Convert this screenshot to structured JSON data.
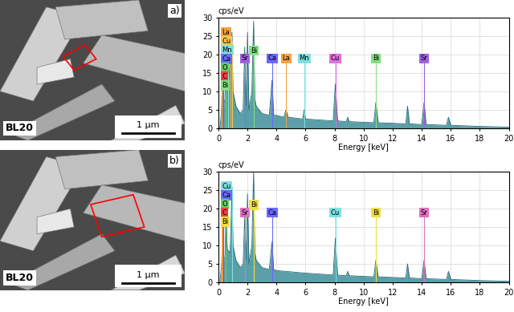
{
  "images": [
    {
      "label": "a)",
      "sample": "BL20",
      "scale_bar": "1 µm"
    },
    {
      "label": "b)",
      "sample": "BL20",
      "scale_bar": "1 µm"
    }
  ],
  "chart_data": [
    {
      "type": "area",
      "y_label": "cps/eV",
      "x_label": "Energy [keV]",
      "xlim": [
        0,
        20
      ],
      "ylim": [
        0,
        30
      ],
      "xticks": [
        0,
        2,
        4,
        6,
        8,
        10,
        12,
        14,
        16,
        18,
        20
      ],
      "yticks": [
        0,
        5,
        10,
        15,
        20,
        25,
        30
      ],
      "grid": true,
      "color": "#3e8e9a",
      "x": [
        0,
        0.1,
        0.2,
        0.28,
        0.35,
        0.45,
        0.52,
        0.6,
        0.7,
        0.83,
        0.93,
        1.0,
        1.2,
        1.5,
        1.7,
        1.81,
        1.9,
        2.0,
        2.1,
        2.3,
        2.42,
        2.5,
        2.6,
        3.0,
        3.5,
        3.69,
        3.8,
        4.0,
        4.5,
        4.65,
        4.8,
        5.8,
        5.9,
        6.0,
        7.9,
        8.05,
        8.2,
        8.8,
        8.9,
        9.0,
        10.7,
        10.84,
        11.0,
        12.9,
        13.02,
        13.15,
        14.0,
        14.16,
        14.3,
        15.7,
        15.84,
        16.0,
        18,
        20
      ],
      "values": [
        0,
        0,
        4,
        14,
        6,
        8,
        24,
        10,
        12,
        20,
        26,
        10,
        6,
        4,
        5,
        22,
        6,
        26,
        5,
        10,
        29,
        8,
        6,
        4,
        3.5,
        13,
        3.5,
        3.5,
        3,
        5,
        3,
        2.5,
        5,
        2.5,
        2,
        12,
        2,
        1.8,
        3,
        1.8,
        1.5,
        7,
        1.5,
        1.2,
        6,
        1.2,
        1.0,
        7,
        1.0,
        0.8,
        3,
        0.8,
        0.5,
        0.3
      ],
      "peak_labels": [
        {
          "label": "La",
          "energy": 0.83,
          "color": "#f4a340"
        },
        {
          "label": "Cu",
          "energy": 0.93,
          "color": "#f7c84a"
        },
        {
          "label": "Mn",
          "energy": 0.64,
          "color": "#7fe0e0"
        },
        {
          "label": "Ca",
          "energy": 0.34,
          "color": "#6a6aff"
        },
        {
          "label": "O",
          "energy": 0.52,
          "color": "#60d060"
        },
        {
          "label": "C",
          "energy": 0.28,
          "color": "#f04040"
        },
        {
          "label": "Bi",
          "energy": 0.2,
          "color": "#80e080"
        },
        {
          "label": "Sr",
          "energy": 1.81,
          "color": "#a060e0"
        },
        {
          "label": "Bi",
          "energy": 2.42,
          "color": "#80e080"
        },
        {
          "label": "Ca",
          "energy": 3.69,
          "color": "#6a6aff"
        },
        {
          "label": "La",
          "energy": 4.65,
          "color": "#f4a340"
        },
        {
          "label": "Mn",
          "energy": 5.9,
          "color": "#7fe0e0"
        },
        {
          "label": "Cu",
          "energy": 8.05,
          "color": "#e070e0"
        },
        {
          "label": "Bi",
          "energy": 10.84,
          "color": "#80e080"
        },
        {
          "label": "Sr",
          "energy": 14.16,
          "color": "#a060e0"
        }
      ]
    },
    {
      "type": "area",
      "y_label": "cps/eV",
      "x_label": "Energy [keV]",
      "xlim": [
        0,
        20
      ],
      "ylim": [
        0,
        30
      ],
      "xticks": [
        0,
        2,
        4,
        6,
        8,
        10,
        12,
        14,
        16,
        18,
        20
      ],
      "yticks": [
        0,
        5,
        10,
        15,
        20,
        25,
        30
      ],
      "grid": true,
      "color": "#3e8e9a",
      "x": [
        0,
        0.1,
        0.2,
        0.28,
        0.35,
        0.45,
        0.52,
        0.6,
        0.8,
        0.93,
        1.0,
        1.2,
        1.5,
        1.7,
        1.81,
        1.9,
        2.0,
        2.1,
        2.3,
        2.42,
        2.5,
        2.6,
        3.0,
        3.5,
        3.69,
        3.8,
        4.0,
        6.0,
        7.9,
        8.05,
        8.2,
        8.8,
        8.9,
        9.0,
        10.7,
        10.84,
        11.0,
        12.9,
        13.02,
        13.15,
        14.0,
        14.16,
        14.3,
        15.7,
        15.84,
        16.0,
        18,
        20
      ],
      "values": [
        0,
        0,
        4,
        12,
        6,
        7,
        20,
        9,
        8,
        25,
        10,
        6,
        4,
        5,
        18,
        6,
        24,
        5,
        10,
        30,
        8,
        6,
        4,
        3.5,
        11,
        3.5,
        3.2,
        2.5,
        2,
        12,
        2,
        1.8,
        3,
        1.8,
        1.5,
        6,
        1.5,
        1.2,
        5,
        1.2,
        1.0,
        6,
        1.0,
        0.8,
        3,
        0.8,
        0.5,
        0.3
      ],
      "peak_labels": [
        {
          "label": "Cu",
          "energy": 0.93,
          "color": "#7fe0e0"
        },
        {
          "label": "Ca",
          "energy": 0.34,
          "color": "#6a6aff"
        },
        {
          "label": "O",
          "energy": 0.52,
          "color": "#60d060"
        },
        {
          "label": "C",
          "energy": 0.28,
          "color": "#f04040"
        },
        {
          "label": "Bi",
          "energy": 0.2,
          "color": "#f0e040"
        },
        {
          "label": "Sr",
          "energy": 1.81,
          "color": "#e070c0"
        },
        {
          "label": "Bi",
          "energy": 2.42,
          "color": "#f0e040"
        },
        {
          "label": "Ca",
          "energy": 3.69,
          "color": "#6a6aff"
        },
        {
          "label": "Cu",
          "energy": 8.05,
          "color": "#7fe0e0"
        },
        {
          "label": "Bi",
          "energy": 10.84,
          "color": "#f0e040"
        },
        {
          "label": "Sr",
          "energy": 14.16,
          "color": "#e070c0"
        }
      ]
    }
  ]
}
